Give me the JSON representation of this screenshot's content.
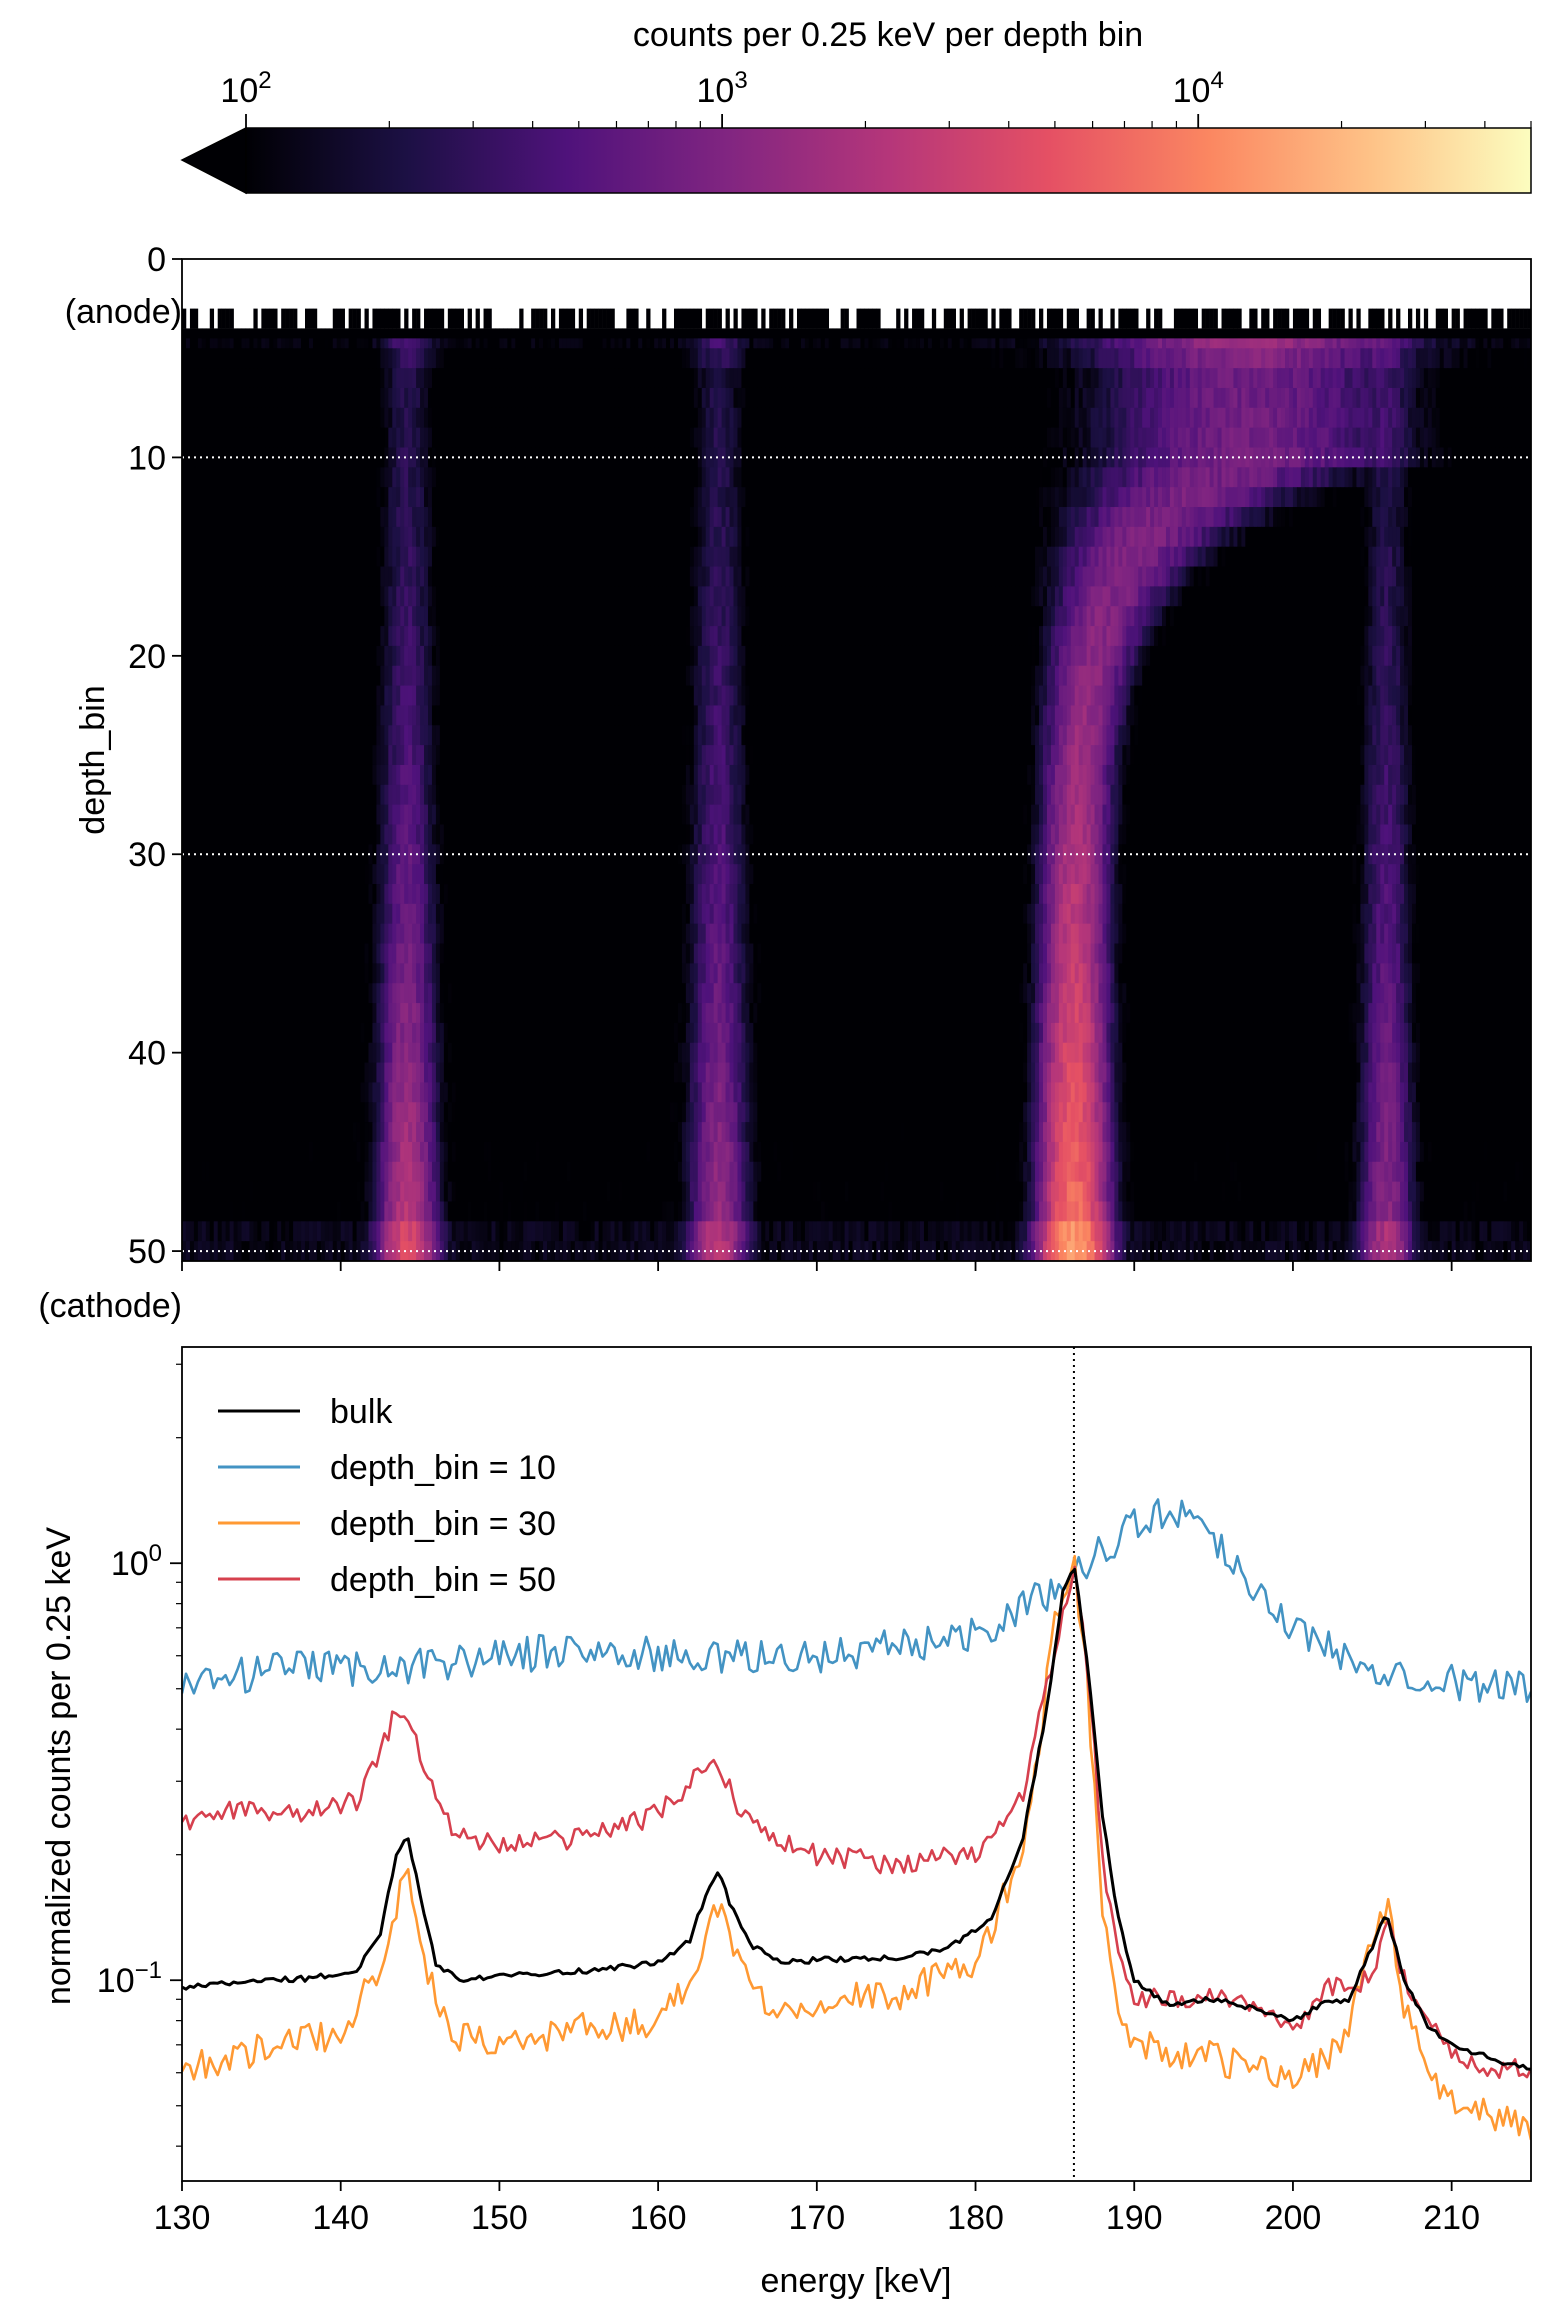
{
  "chart_data": [
    {
      "type": "colorbar",
      "label": "counts per 0.25 keV per depth bin",
      "scale": "log",
      "range": [
        100,
        50000
      ],
      "ticks": [
        {
          "base": "10",
          "exp": "2",
          "value": 100
        },
        {
          "base": "10",
          "exp": "3",
          "value": 1000
        },
        {
          "base": "10",
          "exp": "4",
          "value": 10000
        }
      ],
      "extend": "min",
      "colormap": "magma",
      "colormap_stops": [
        "#000004",
        "#1c1044",
        "#4f127b",
        "#812581",
        "#b5367a",
        "#e55064",
        "#fb8761",
        "#fec287",
        "#fcfdbf"
      ]
    },
    {
      "type": "heatmap",
      "x": {
        "range": [
          130,
          215
        ],
        "unit": "keV"
      },
      "y": {
        "range": [
          0,
          50.5
        ],
        "inverted": true,
        "ticks": [
          "0",
          "10",
          "20",
          "30",
          "40",
          "50"
        ]
      },
      "ylabel": "depth_bin",
      "y_end_annotations": {
        "top": "(anode)",
        "bottom": "(cathode)"
      },
      "reference_lines": [
        10,
        30,
        50
      ],
      "empty_rows_below": 3.5,
      "bands": [
        {
          "center_keV": 144.2,
          "width_keV": 0.9,
          "intensity_top": 180,
          "intensity_bottom": 2600
        },
        {
          "center_keV": 163.8,
          "width_keV": 0.9,
          "intensity_top": 170,
          "intensity_bottom": 1500
        },
        {
          "center_keV": 186.2,
          "width_keV": 1.0,
          "intensity_top": 700,
          "intensity_bottom": 9000,
          "shifts_toward_anode_keV": 11
        },
        {
          "center_keV": 205.9,
          "width_keV": 0.8,
          "intensity_top": 150,
          "intensity_bottom": 1300
        }
      ]
    },
    {
      "type": "line",
      "xlabel": "energy [keV]",
      "ylabel": "normalized counts per 0.25 keV",
      "yscale": "log",
      "xlim": [
        130,
        215
      ],
      "ylim": [
        0.033,
        3.3
      ],
      "xticks": [
        "130",
        "140",
        "150",
        "160",
        "170",
        "180",
        "190",
        "200",
        "210"
      ],
      "yticks": [
        {
          "base": "10",
          "exp": "0",
          "value": 1
        },
        {
          "base": "10",
          "exp": "−1",
          "value": 0.1
        }
      ],
      "vline": 186.2,
      "legend_position": "top-left",
      "series": [
        {
          "name": "bulk",
          "color": "#000000",
          "x": [
            130,
            135,
            138,
            141,
            142.5,
            143.5,
            144.2,
            145,
            146,
            147.5,
            150,
            155,
            160,
            162,
            163,
            163.8,
            164.6,
            166,
            168,
            170,
            175,
            178,
            181,
            183,
            184.5,
            185.5,
            186.2,
            187,
            188,
            189,
            190,
            192,
            195,
            198,
            200,
            202,
            203.5,
            205,
            205.9,
            207,
            208.5,
            210,
            213,
            215
          ],
          "values": [
            0.096,
            0.1,
            0.101,
            0.105,
            0.13,
            0.2,
            0.225,
            0.16,
            0.11,
            0.1,
            0.103,
            0.105,
            0.11,
            0.125,
            0.16,
            0.185,
            0.15,
            0.12,
            0.11,
            0.112,
            0.113,
            0.118,
            0.14,
            0.22,
            0.45,
            0.85,
            1.0,
            0.6,
            0.25,
            0.14,
            0.1,
            0.088,
            0.09,
            0.085,
            0.08,
            0.088,
            0.09,
            0.12,
            0.145,
            0.1,
            0.078,
            0.07,
            0.064,
            0.061
          ]
        },
        {
          "name": "depth_bin = 10",
          "color": "#4393c3",
          "x": [
            130,
            135,
            140,
            145,
            150,
            155,
            160,
            165,
            170,
            175,
            180,
            184,
            186.2,
            188,
            190,
            193,
            195,
            198,
            200,
            203,
            206,
            210,
            215
          ],
          "values": [
            0.5,
            0.55,
            0.56,
            0.57,
            0.6,
            0.62,
            0.6,
            0.59,
            0.6,
            0.63,
            0.68,
            0.82,
            0.95,
            1.08,
            1.25,
            1.35,
            1.15,
            0.85,
            0.7,
            0.6,
            0.56,
            0.52,
            0.5
          ]
        },
        {
          "name": "depth_bin = 30",
          "color": "#ff9933",
          "x": [
            130,
            135,
            140,
            142.5,
            144.2,
            145.5,
            147,
            150,
            155,
            160,
            162,
            163.8,
            165,
            167,
            170,
            175,
            180,
            183,
            185,
            186.2,
            187,
            188,
            189,
            190,
            195,
            200,
            203,
            205.9,
            207,
            209,
            212,
            215
          ],
          "values": [
            0.062,
            0.068,
            0.075,
            0.11,
            0.185,
            0.1,
            0.075,
            0.07,
            0.076,
            0.08,
            0.1,
            0.155,
            0.115,
            0.085,
            0.09,
            0.092,
            0.11,
            0.2,
            0.7,
            1.0,
            0.55,
            0.15,
            0.08,
            0.07,
            0.065,
            0.058,
            0.07,
            0.155,
            0.085,
            0.055,
            0.048,
            0.043
          ]
        },
        {
          "name": "depth_bin = 50",
          "color": "#d6404e",
          "x": [
            130,
            134,
            138,
            141,
            142.5,
            143.5,
            144.2,
            145.5,
            147,
            150,
            155,
            160,
            162.5,
            163.8,
            165,
            167,
            170,
            175,
            180,
            183,
            185,
            186.2,
            187,
            188,
            189,
            190,
            195,
            198,
            200,
            202,
            205,
            205.9,
            207,
            210,
            213,
            215
          ],
          "values": [
            0.24,
            0.26,
            0.25,
            0.27,
            0.35,
            0.44,
            0.45,
            0.3,
            0.23,
            0.21,
            0.22,
            0.25,
            0.31,
            0.34,
            0.26,
            0.22,
            0.2,
            0.19,
            0.2,
            0.28,
            0.62,
            0.97,
            0.6,
            0.2,
            0.11,
            0.09,
            0.09,
            0.088,
            0.075,
            0.095,
            0.1,
            0.15,
            0.1,
            0.065,
            0.06,
            0.062
          ]
        }
      ]
    }
  ]
}
